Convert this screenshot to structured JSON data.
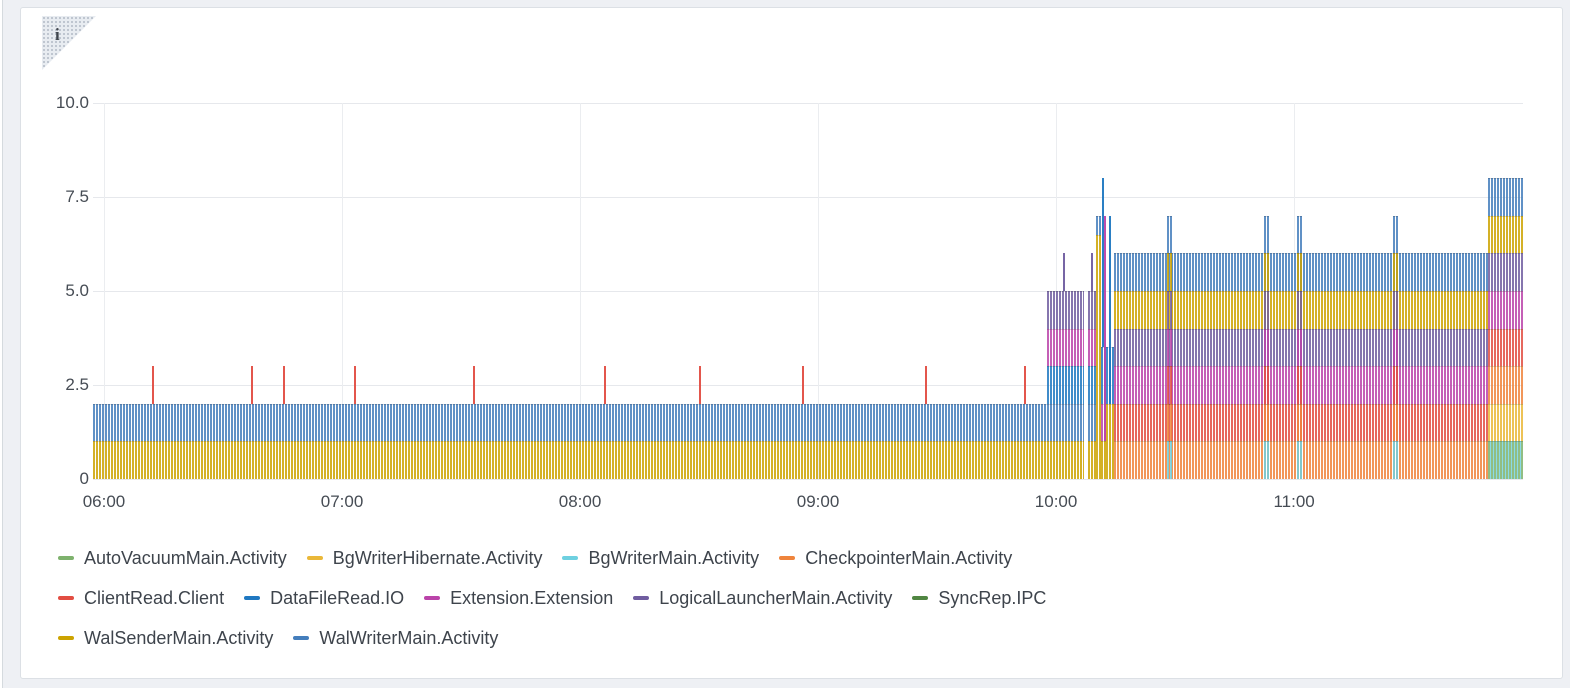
{
  "page": {
    "info_icon": "i"
  },
  "chart_data": {
    "type": "bar",
    "stacked": true,
    "title": "",
    "xlabel": "",
    "ylabel": "",
    "grid": true,
    "legend_position": "bottom",
    "y_axis": {
      "min": 0,
      "max": 10,
      "ticks": [
        {
          "value": 0,
          "label": "0"
        },
        {
          "value": 2.5,
          "label": "2.5"
        },
        {
          "value": 5.0,
          "label": "5.0"
        },
        {
          "value": 7.5,
          "label": "7.5"
        },
        {
          "value": 10.0,
          "label": "10.0"
        }
      ]
    },
    "x_axis": {
      "unit": "time-of-day",
      "ticks": [
        {
          "min": 0,
          "label": "06:00"
        },
        {
          "min": 60,
          "label": "07:00"
        },
        {
          "min": 120,
          "label": "08:00"
        },
        {
          "min": 180,
          "label": "09:00"
        },
        {
          "min": 240,
          "label": "10:00"
        },
        {
          "min": 300,
          "label": "11:00"
        }
      ]
    },
    "series": [
      {
        "key": "autovacuum",
        "label": "AutoVacuumMain.Activity",
        "color": "#7EB26D"
      },
      {
        "key": "bgwriterhibernate",
        "label": "BgWriterHibernate.Activity",
        "color": "#EAB839"
      },
      {
        "key": "bgwritermain",
        "label": "BgWriterMain.Activity",
        "color": "#6ED0E0"
      },
      {
        "key": "checkpointer",
        "label": "CheckpointerMain.Activity",
        "color": "#EF843C"
      },
      {
        "key": "clientread",
        "label": "ClientRead.Client",
        "color": "#E24D42"
      },
      {
        "key": "datafileread",
        "label": "DataFileRead.IO",
        "color": "#1F78C1"
      },
      {
        "key": "extension",
        "label": "Extension.Extension",
        "color": "#BA43A9"
      },
      {
        "key": "logicallauncher",
        "label": "LogicalLauncherMain.Activity",
        "color": "#705DA0"
      },
      {
        "key": "syncrep",
        "label": "SyncRep.IPC",
        "color": "#508642"
      },
      {
        "key": "walsender",
        "label": "WalSenderMain.Activity",
        "color": "#CCA300"
      },
      {
        "key": "walwriter",
        "label": "WalWriterMain.Activity",
        "color": "#447EBC"
      }
    ],
    "legend_rows": [
      [
        "autovacuum",
        "bgwriterhibernate",
        "bgwritermain",
        "checkpointer"
      ],
      [
        "clientread",
        "datafileread",
        "extension",
        "logicallauncher",
        "syncrep"
      ],
      [
        "walsender",
        "walwriter"
      ]
    ],
    "segments": [
      {
        "start": -3,
        "end": 237.7,
        "stack": [
          [
            "walsender",
            1
          ],
          [
            "walwriter",
            1
          ]
        ]
      },
      {
        "start": 237.7,
        "end": 247,
        "stack": [
          [
            "walsender",
            1
          ],
          [
            "walwriter",
            1
          ],
          [
            "datafileread",
            1
          ],
          [
            "extension",
            1
          ],
          [
            "logicallauncher",
            1
          ]
        ]
      },
      {
        "start": 248,
        "end": 250,
        "stack": [
          [
            "walsender",
            1
          ],
          [
            "walwriter",
            1
          ],
          [
            "datafileread",
            1
          ],
          [
            "extension",
            1
          ],
          [
            "logicallauncher",
            1
          ]
        ]
      },
      {
        "start": 250,
        "end": 251.3,
        "stack": [
          [
            "walsender",
            6.5
          ],
          [
            "walwriter",
            0.5
          ]
        ]
      },
      {
        "start": 251.3,
        "end": 252.6,
        "stack": [
          [
            "walsender",
            1
          ],
          [
            "extension",
            1
          ],
          [
            "datafileread",
            1.5
          ]
        ]
      },
      {
        "start": 252.6,
        "end": 254.6,
        "stack": [
          [
            "walsender",
            2
          ],
          [
            "datafileread",
            1.5
          ]
        ]
      },
      {
        "start": 254.6,
        "end": 349,
        "stack": [
          [
            "checkpointer",
            1
          ],
          [
            "clientread",
            1
          ],
          [
            "extension",
            1
          ],
          [
            "logicallauncher",
            1
          ],
          [
            "walsender",
            1
          ],
          [
            "walwriter",
            1
          ]
        ]
      },
      {
        "start": 268,
        "end": 269.2,
        "stack": [
          [
            "bgwritermain",
            1
          ],
          [
            "checkpointer",
            1
          ],
          [
            "clientread",
            1
          ],
          [
            "extension",
            1
          ],
          [
            "logicallauncher",
            1
          ],
          [
            "walsender",
            1
          ],
          [
            "walwriter",
            1
          ]
        ]
      },
      {
        "start": 292.4,
        "end": 293.6,
        "stack": [
          [
            "bgwritermain",
            1
          ],
          [
            "checkpointer",
            1
          ],
          [
            "clientread",
            1
          ],
          [
            "extension",
            1
          ],
          [
            "logicallauncher",
            1
          ],
          [
            "walsender",
            1
          ],
          [
            "walwriter",
            1
          ]
        ]
      },
      {
        "start": 300.7,
        "end": 301.9,
        "stack": [
          [
            "bgwritermain",
            1
          ],
          [
            "checkpointer",
            1
          ],
          [
            "clientread",
            1
          ],
          [
            "extension",
            1
          ],
          [
            "logicallauncher",
            1
          ],
          [
            "walsender",
            1
          ],
          [
            "walwriter",
            1
          ]
        ]
      },
      {
        "start": 325,
        "end": 326.2,
        "stack": [
          [
            "bgwritermain",
            1
          ],
          [
            "checkpointer",
            1
          ],
          [
            "clientread",
            1
          ],
          [
            "extension",
            1
          ],
          [
            "logicallauncher",
            1
          ],
          [
            "walsender",
            1
          ],
          [
            "walwriter",
            1
          ]
        ]
      },
      {
        "start": 349,
        "end": 357.7,
        "stack": [
          [
            "autovacuum",
            1,
            "bgwritermain"
          ],
          [
            "bgwriterhibernate",
            1
          ],
          [
            "checkpointer",
            1
          ],
          [
            "clientread",
            1
          ],
          [
            "extension",
            1
          ],
          [
            "logicallauncher",
            1
          ],
          [
            "walsender",
            1
          ],
          [
            "walwriter",
            1
          ]
        ]
      }
    ],
    "spikes": [
      {
        "t": 12,
        "y0": 2,
        "y1": 3,
        "series": "clientread"
      },
      {
        "t": 37,
        "y0": 2,
        "y1": 3,
        "series": "clientread"
      },
      {
        "t": 45,
        "y0": 2,
        "y1": 3,
        "series": "clientread"
      },
      {
        "t": 63,
        "y0": 2,
        "y1": 3,
        "series": "clientread"
      },
      {
        "t": 93,
        "y0": 2,
        "y1": 3,
        "series": "clientread"
      },
      {
        "t": 126,
        "y0": 2,
        "y1": 3,
        "series": "clientread"
      },
      {
        "t": 150,
        "y0": 2,
        "y1": 3,
        "series": "clientread"
      },
      {
        "t": 176,
        "y0": 2,
        "y1": 3,
        "series": "clientread"
      },
      {
        "t": 207,
        "y0": 2,
        "y1": 3,
        "series": "clientread"
      },
      {
        "t": 232,
        "y0": 2,
        "y1": 3,
        "series": "clientread"
      },
      {
        "t": 241.7,
        "y0": 5,
        "y1": 6,
        "series": "logicallauncher"
      },
      {
        "t": 248.8,
        "y0": 5,
        "y1": 6,
        "series": "logicallauncher"
      },
      {
        "t": 251.6,
        "y0": 3.5,
        "y1": 8,
        "series": "datafileread"
      },
      {
        "t": 252.1,
        "y0": 1,
        "y1": 7,
        "series": "extension"
      },
      {
        "t": 253.3,
        "y0": 2,
        "y1": 7,
        "series": "datafileread"
      }
    ]
  }
}
